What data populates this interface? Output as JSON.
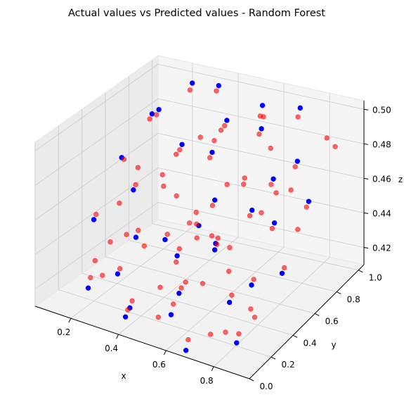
{
  "chart_data": {
    "type": "scatter",
    "title": "Actual values vs Predicted values - Random Forest",
    "xlabel": "x",
    "ylabel": "y",
    "zlabel": "z",
    "xlim": [
      0.05,
      0.95
    ],
    "ylim": [
      0.0,
      1.05
    ],
    "zlim": [
      0.41,
      0.505
    ],
    "x_ticks": [
      "0.2",
      "0.4",
      "0.6",
      "0.8"
    ],
    "y_ticks": [
      "0.0",
      "0.2",
      "0.4",
      "0.6",
      "0.8",
      "1.0"
    ],
    "z_ticks": [
      "0.42",
      "0.44",
      "0.46",
      "0.48",
      "0.50"
    ],
    "grid": true,
    "colors": {
      "actual": "#0000ff",
      "predicted": "#ff0000",
      "pane": "#f2f2f2",
      "grid": "#cccccc"
    },
    "series": [
      {
        "color": "#0000ff",
        "x": [
          0.1,
          0.12,
          0.15,
          0.18,
          0.22,
          0.25,
          0.3,
          0.33,
          0.38,
          0.4,
          0.45,
          0.48,
          0.52,
          0.55,
          0.58,
          0.62,
          0.66,
          0.7,
          0.75,
          0.8,
          0.85,
          0.9,
          0.35,
          0.42,
          0.5,
          0.6,
          0.72,
          0.82,
          0.28,
          0.46,
          0.56,
          0.68,
          0.78,
          0.88,
          0.2,
          0.64
        ],
        "y": [
          0.9,
          0.6,
          0.3,
          0.8,
          0.5,
          0.95,
          0.2,
          0.7,
          0.45,
          0.1,
          0.85,
          0.35,
          0.6,
          0.15,
          0.9,
          0.4,
          0.05,
          0.75,
          0.25,
          0.55,
          0.1,
          0.65,
          0.98,
          0.02,
          0.5,
          0.85,
          0.95,
          0.3,
          0.4,
          0.7,
          0.2,
          0.6,
          0.8,
          0.45,
          0.15,
          0.35
        ],
        "z": [
          0.48,
          0.47,
          0.45,
          0.49,
          0.46,
          0.5,
          0.43,
          0.48,
          0.44,
          0.42,
          0.49,
          0.44,
          0.46,
          0.42,
          0.5,
          0.45,
          0.41,
          0.47,
          0.43,
          0.46,
          0.42,
          0.47,
          0.5,
          0.42,
          0.45,
          0.49,
          0.5,
          0.44,
          0.44,
          0.48,
          0.43,
          0.46,
          0.48,
          0.44,
          0.42,
          0.45
        ]
      },
      {
        "color": "#ff0000",
        "x": [
          0.1,
          0.12,
          0.15,
          0.18,
          0.22,
          0.25,
          0.3,
          0.33,
          0.38,
          0.4,
          0.45,
          0.48,
          0.52,
          0.55,
          0.58,
          0.62,
          0.66,
          0.7,
          0.75,
          0.8,
          0.85,
          0.9,
          0.35,
          0.42,
          0.5,
          0.6,
          0.72,
          0.82,
          0.28,
          0.46,
          0.56,
          0.68,
          0.78,
          0.88,
          0.2,
          0.64,
          0.14,
          0.24,
          0.32,
          0.44,
          0.54,
          0.66,
          0.76,
          0.86,
          0.26,
          0.36,
          0.5,
          0.58,
          0.7,
          0.84,
          0.16,
          0.4,
          0.62,
          0.74,
          0.92,
          0.3,
          0.48,
          0.56,
          0.68,
          0.8,
          0.22,
          0.38,
          0.52,
          0.64,
          0.88,
          0.34,
          0.46,
          0.6,
          0.72,
          0.18,
          0.42,
          0.54,
          0.78,
          0.9,
          0.28,
          0.5
        ],
        "y": [
          0.88,
          0.62,
          0.32,
          0.78,
          0.52,
          0.93,
          0.22,
          0.68,
          0.47,
          0.12,
          0.83,
          0.37,
          0.58,
          0.17,
          0.88,
          0.42,
          0.07,
          0.73,
          0.27,
          0.53,
          0.12,
          0.63,
          0.96,
          0.04,
          0.48,
          0.83,
          0.93,
          0.32,
          0.42,
          0.68,
          0.22,
          0.58,
          0.78,
          0.47,
          0.17,
          0.37,
          0.7,
          0.4,
          0.55,
          0.6,
          0.3,
          0.2,
          0.65,
          0.9,
          0.15,
          0.8,
          0.75,
          0.45,
          0.35,
          0.25,
          0.5,
          0.9,
          0.65,
          0.1,
          0.85,
          0.6,
          0.2,
          0.95,
          0.4,
          0.7,
          0.3,
          0.55,
          0.1,
          0.85,
          0.2,
          0.35,
          0.5,
          0.7,
          0.6,
          0.25,
          0.8,
          0.4,
          0.15,
          0.55,
          0.75,
          0.3
        ],
        "z": [
          0.478,
          0.468,
          0.452,
          0.488,
          0.462,
          0.497,
          0.432,
          0.478,
          0.442,
          0.423,
          0.488,
          0.443,
          0.458,
          0.425,
          0.495,
          0.452,
          0.415,
          0.468,
          0.433,
          0.458,
          0.424,
          0.468,
          0.498,
          0.423,
          0.452,
          0.488,
          0.496,
          0.442,
          0.443,
          0.478,
          0.432,
          0.458,
          0.478,
          0.442,
          0.425,
          0.452,
          0.46,
          0.44,
          0.47,
          0.45,
          0.43,
          0.44,
          0.47,
          0.49,
          0.43,
          0.48,
          0.46,
          0.45,
          0.44,
          0.43,
          0.45,
          0.48,
          0.47,
          0.42,
          0.49,
          0.46,
          0.43,
          0.49,
          0.45,
          0.47,
          0.44,
          0.46,
          0.42,
          0.48,
          0.43,
          0.44,
          0.45,
          0.47,
          0.46,
          0.43,
          0.48,
          0.45,
          0.42,
          0.46,
          0.47,
          0.44
        ]
      }
    ]
  }
}
